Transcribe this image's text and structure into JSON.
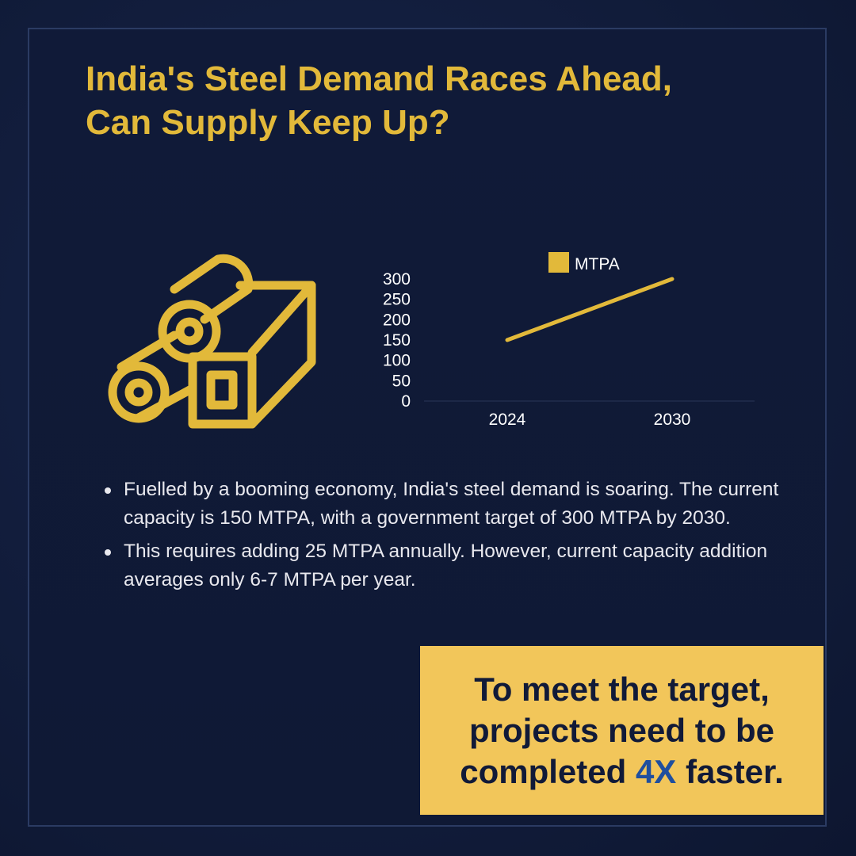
{
  "title_line1": "India's Steel Demand Races Ahead,",
  "title_line2": "Can Supply Keep Up?",
  "colors": {
    "background": "#111c3a",
    "accent": "#e2b93a",
    "callout_bg": "#f2c65a",
    "highlight": "#1f4f9e"
  },
  "illustration": {
    "icon": "steel-rolls-and-beam-icon"
  },
  "chart_data": {
    "type": "line",
    "categories": [
      "2024",
      "2030"
    ],
    "series": [
      {
        "name": "MTPA",
        "values": [
          150,
          300
        ],
        "color": "#e2b93a"
      }
    ],
    "yticks": [
      0,
      50,
      100,
      150,
      200,
      250,
      300
    ],
    "ylim": [
      0,
      300
    ],
    "legend_position": "top",
    "grid": false
  },
  "bullets": [
    "Fuelled by a booming economy, India's steel demand is soaring. The current capacity is 150 MTPA, with a government target of 300 MTPA by 2030.",
    "This requires adding 25 MTPA annually. However, current capacity addition averages only 6-7 MTPA per year."
  ],
  "callout": {
    "line1": "To meet the target,",
    "line2": "projects need to be",
    "line3_prefix": "completed ",
    "line3_highlight": "4X",
    "line3_suffix": " faster."
  }
}
